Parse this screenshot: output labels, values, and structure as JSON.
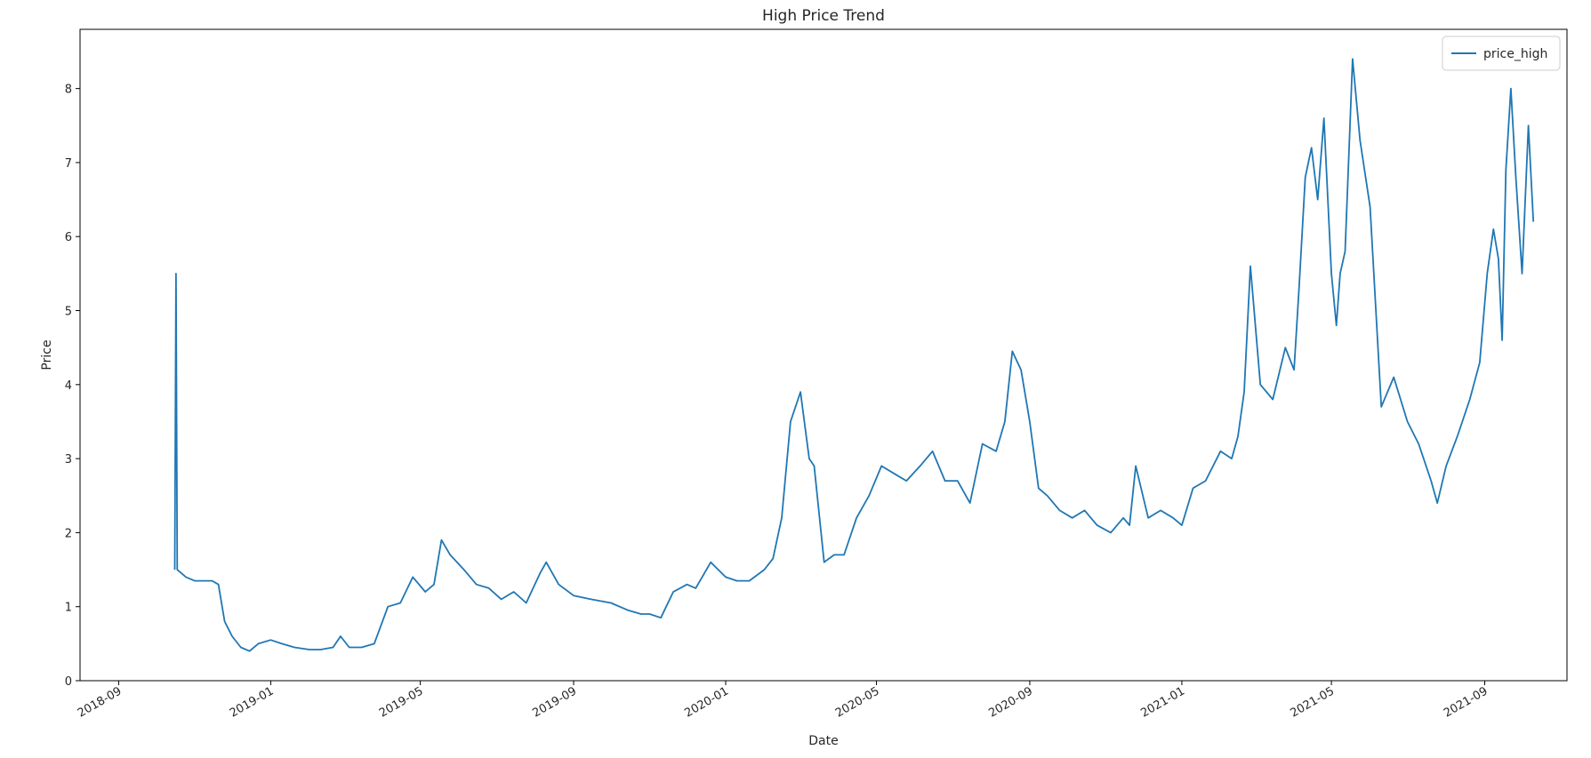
{
  "chart_data": {
    "type": "line",
    "title": "High Price Trend",
    "xlabel": "Date",
    "ylabel": "Price",
    "legend": {
      "position": "top-right",
      "entries": [
        "price_high"
      ]
    },
    "grid": false,
    "xlim": [
      "2018-08-01",
      "2021-11-06"
    ],
    "ylim": [
      0,
      8.8
    ],
    "x_ticks": [
      "2018-09",
      "2019-01",
      "2019-05",
      "2019-09",
      "2020-01",
      "2020-05",
      "2020-09",
      "2021-01",
      "2021-05",
      "2021-09"
    ],
    "y_ticks": [
      0,
      1,
      2,
      3,
      4,
      5,
      6,
      7,
      8
    ],
    "series": [
      {
        "name": "price_high",
        "color": "#1f77b4",
        "x": [
          "2018-10-16",
          "2018-10-17",
          "2018-10-18",
          "2018-10-25",
          "2018-11-01",
          "2018-11-08",
          "2018-11-15",
          "2018-11-20",
          "2018-11-25",
          "2018-12-01",
          "2018-12-08",
          "2018-12-15",
          "2018-12-22",
          "2019-01-01",
          "2019-01-10",
          "2019-01-20",
          "2019-02-01",
          "2019-02-10",
          "2019-02-20",
          "2019-02-26",
          "2019-03-05",
          "2019-03-15",
          "2019-03-25",
          "2019-04-05",
          "2019-04-15",
          "2019-04-25",
          "2019-05-05",
          "2019-05-12",
          "2019-05-18",
          "2019-05-25",
          "2019-06-05",
          "2019-06-15",
          "2019-06-25",
          "2019-07-05",
          "2019-07-15",
          "2019-07-25",
          "2019-08-05",
          "2019-08-10",
          "2019-08-20",
          "2019-09-01",
          "2019-09-15",
          "2019-10-01",
          "2019-10-15",
          "2019-10-25",
          "2019-11-01",
          "2019-11-10",
          "2019-11-20",
          "2019-12-01",
          "2019-12-08",
          "2019-12-20",
          "2020-01-01",
          "2020-01-10",
          "2020-01-20",
          "2020-02-01",
          "2020-02-08",
          "2020-02-15",
          "2020-02-22",
          "2020-03-01",
          "2020-03-08",
          "2020-03-12",
          "2020-03-20",
          "2020-03-28",
          "2020-04-05",
          "2020-04-15",
          "2020-04-25",
          "2020-05-05",
          "2020-05-15",
          "2020-05-25",
          "2020-06-05",
          "2020-06-15",
          "2020-06-25",
          "2020-07-05",
          "2020-07-15",
          "2020-07-25",
          "2020-08-05",
          "2020-08-12",
          "2020-08-18",
          "2020-08-25",
          "2020-09-01",
          "2020-09-08",
          "2020-09-15",
          "2020-09-25",
          "2020-10-05",
          "2020-10-15",
          "2020-10-25",
          "2020-11-05",
          "2020-11-15",
          "2020-11-20",
          "2020-11-25",
          "2020-12-05",
          "2020-12-15",
          "2020-12-25",
          "2021-01-01",
          "2021-01-10",
          "2021-01-20",
          "2021-02-01",
          "2021-02-10",
          "2021-02-15",
          "2021-02-20",
          "2021-02-25",
          "2021-03-05",
          "2021-03-15",
          "2021-03-25",
          "2021-04-01",
          "2021-04-05",
          "2021-04-10",
          "2021-04-15",
          "2021-04-20",
          "2021-04-25",
          "2021-05-01",
          "2021-05-05",
          "2021-05-08",
          "2021-05-12",
          "2021-05-18",
          "2021-05-24",
          "2021-06-01",
          "2021-06-10",
          "2021-06-20",
          "2021-07-01",
          "2021-07-10",
          "2021-07-20",
          "2021-07-25",
          "2021-08-01",
          "2021-08-10",
          "2021-08-20",
          "2021-08-28",
          "2021-09-03",
          "2021-09-08",
          "2021-09-12",
          "2021-09-15",
          "2021-09-18",
          "2021-09-22",
          "2021-09-26",
          "2021-10-01",
          "2021-10-06",
          "2021-10-10"
        ],
        "values": [
          1.5,
          5.5,
          1.5,
          1.4,
          1.35,
          1.35,
          1.35,
          1.3,
          0.8,
          0.6,
          0.45,
          0.4,
          0.5,
          0.55,
          0.5,
          0.45,
          0.42,
          0.42,
          0.45,
          0.6,
          0.45,
          0.45,
          0.5,
          1.0,
          1.05,
          1.4,
          1.2,
          1.3,
          1.9,
          1.7,
          1.5,
          1.3,
          1.25,
          1.1,
          1.2,
          1.05,
          1.45,
          1.6,
          1.3,
          1.15,
          1.1,
          1.05,
          0.95,
          0.9,
          0.9,
          0.85,
          1.2,
          1.3,
          1.25,
          1.6,
          1.4,
          1.35,
          1.35,
          1.5,
          1.65,
          2.2,
          3.5,
          3.9,
          3.0,
          2.9,
          1.6,
          1.7,
          1.7,
          2.2,
          2.5,
          2.9,
          2.8,
          2.7,
          2.9,
          3.1,
          2.7,
          2.7,
          2.4,
          3.2,
          3.1,
          3.5,
          4.45,
          4.2,
          3.5,
          2.6,
          2.5,
          2.3,
          2.2,
          2.3,
          2.1,
          2.0,
          2.2,
          2.1,
          2.9,
          2.2,
          2.3,
          2.2,
          2.1,
          2.6,
          2.7,
          3.1,
          3.0,
          3.3,
          3.9,
          5.6,
          4.0,
          3.8,
          4.5,
          4.2,
          5.3,
          6.8,
          7.2,
          6.5,
          7.6,
          5.5,
          4.8,
          5.5,
          5.8,
          8.4,
          7.3,
          6.4,
          3.7,
          4.1,
          3.5,
          3.2,
          2.7,
          2.4,
          2.9,
          3.3,
          3.8,
          4.3,
          5.5,
          6.1,
          5.7,
          4.6,
          6.9,
          8.0,
          6.8,
          5.5,
          7.5,
          6.2
        ]
      }
    ]
  }
}
